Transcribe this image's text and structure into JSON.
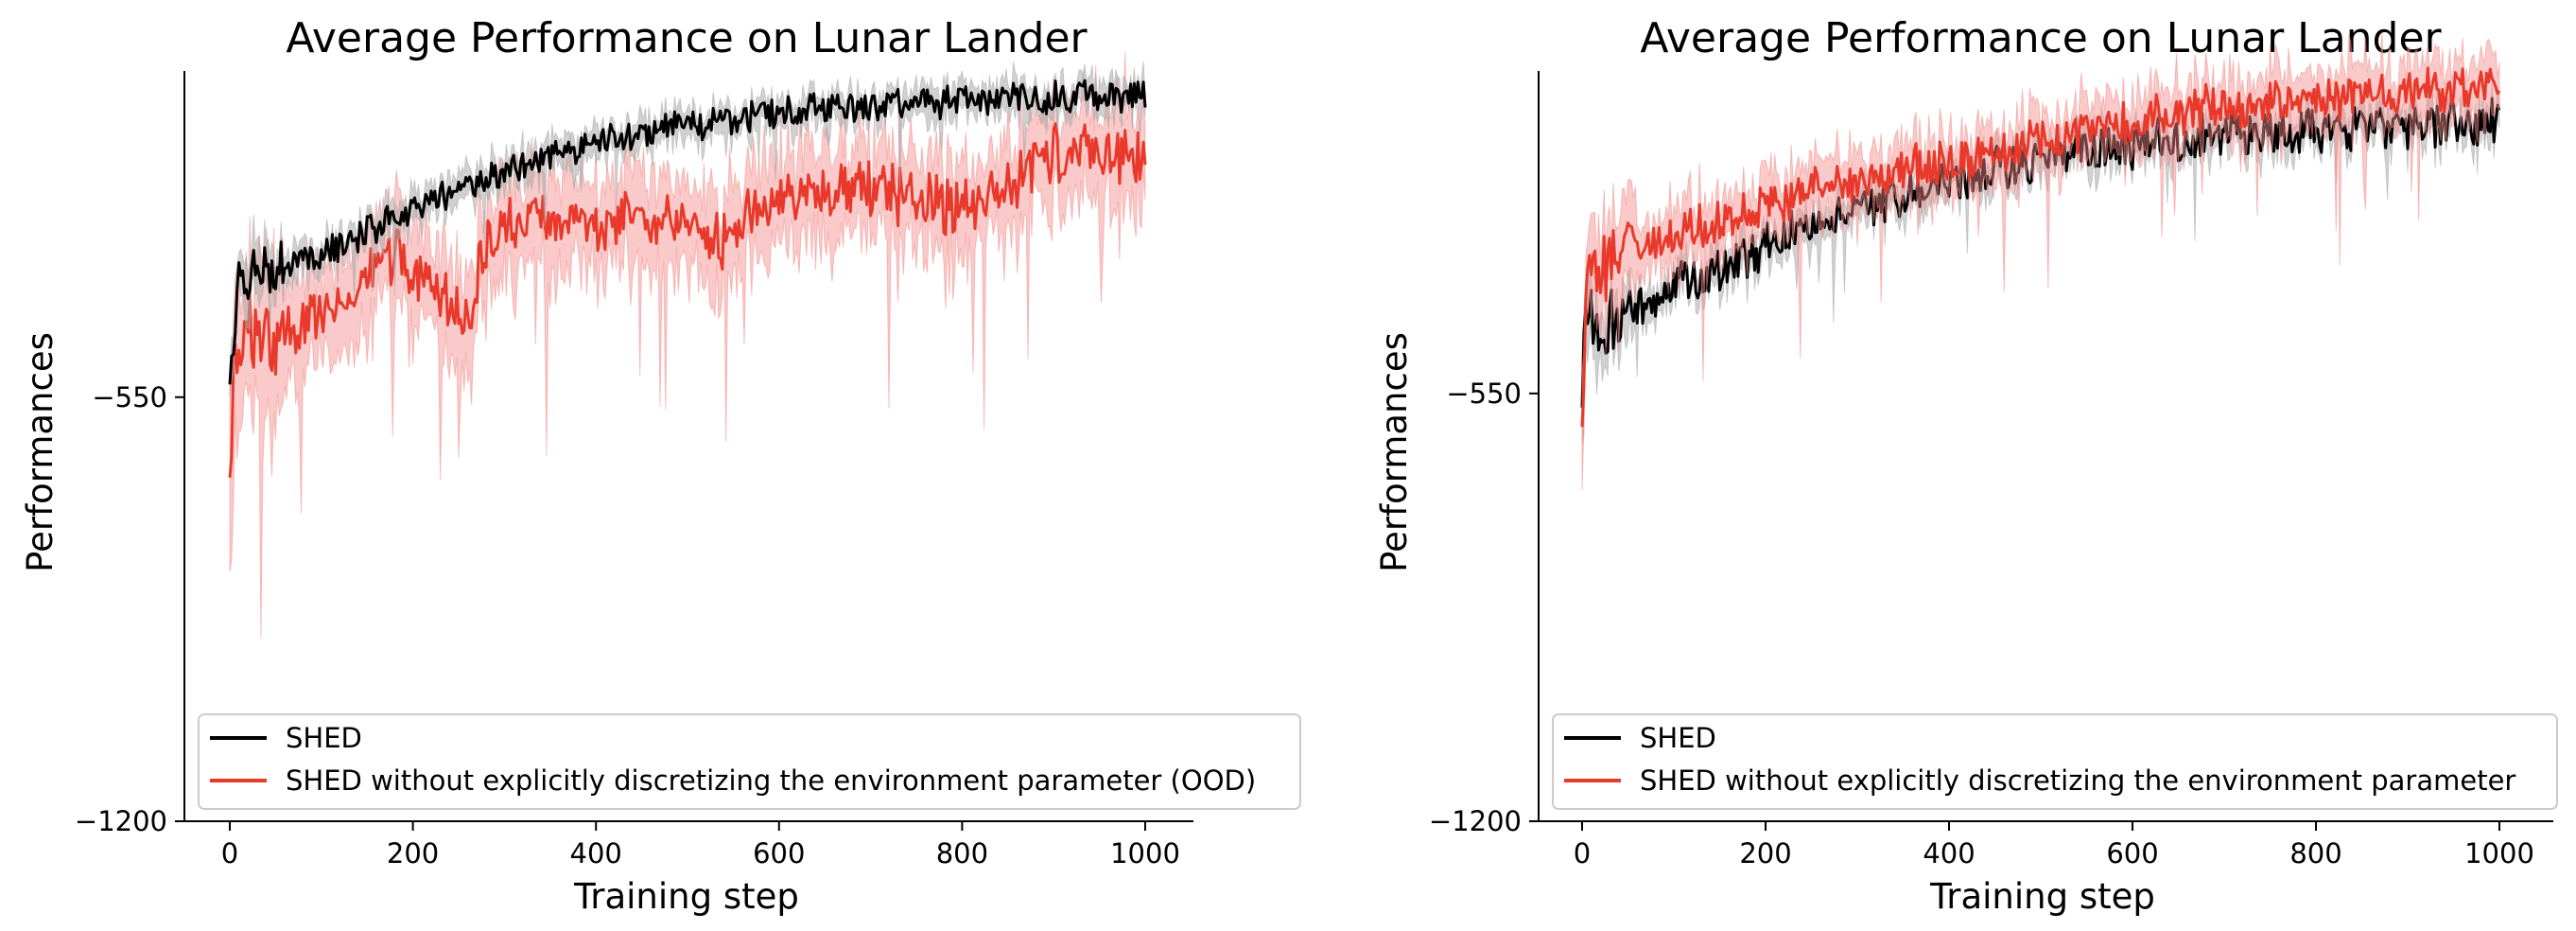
{
  "colors": {
    "shed": "#000000",
    "variant": "#e8392b",
    "variant_band": "#f28a88",
    "shed_band": "#a9a9a9"
  },
  "chart_data": [
    {
      "type": "line",
      "title": "Average Performance on Lunar Lander",
      "xlabel": "Training step",
      "ylabel": "Performances",
      "xlim": [
        -50,
        1050
      ],
      "ylim": [
        -1200,
        -50
      ],
      "xticks": [
        0,
        200,
        400,
        600,
        800,
        1000
      ],
      "yticks": [
        -550,
        -1200
      ],
      "grid": false,
      "legend_position": "bottom",
      "series": [
        {
          "name": "SHED",
          "color": "#000000",
          "band_color": "#a9a9a9",
          "noise": 22,
          "band": 28,
          "keypoints": [
            [
              0,
              -540
            ],
            [
              8,
              -380
            ],
            [
              30,
              -360
            ],
            [
              100,
              -330
            ],
            [
              200,
              -260
            ],
            [
              300,
              -205
            ],
            [
              400,
              -160
            ],
            [
              500,
              -135
            ],
            [
              600,
              -115
            ],
            [
              700,
              -100
            ],
            [
              800,
              -95
            ],
            [
              900,
              -90
            ],
            [
              1000,
              -85
            ]
          ]
        },
        {
          "name": "SHED without explicitly discretizing the environment parameter (OOD)",
          "color": "#e8392b",
          "band_color": "#f28a88",
          "noise": 38,
          "band": 90,
          "keypoints": [
            [
              0,
              -680
            ],
            [
              5,
              -470
            ],
            [
              20,
              -460
            ],
            [
              60,
              -450
            ],
            [
              120,
              -400
            ],
            [
              160,
              -360
            ],
            [
              180,
              -330
            ],
            [
              200,
              -360
            ],
            [
              240,
              -400
            ],
            [
              265,
              -420
            ],
            [
              275,
              -330
            ],
            [
              300,
              -290
            ],
            [
              350,
              -270
            ],
            [
              400,
              -290
            ],
            [
              450,
              -270
            ],
            [
              500,
              -290
            ],
            [
              540,
              -310
            ],
            [
              570,
              -270
            ],
            [
              600,
              -250
            ],
            [
              640,
              -240
            ],
            [
              700,
              -235
            ],
            [
              760,
              -245
            ],
            [
              800,
              -265
            ],
            [
              850,
              -230
            ],
            [
              880,
              -190
            ],
            [
              920,
              -170
            ],
            [
              960,
              -180
            ],
            [
              1000,
              -180
            ]
          ]
        }
      ]
    },
    {
      "type": "line",
      "title": "Average Performance on Lunar Lander",
      "xlabel": "Training step",
      "ylabel": "Performances",
      "xlim": [
        -50,
        1050
      ],
      "ylim": [
        -1200,
        -60
      ],
      "xticks": [
        0,
        200,
        400,
        600,
        800,
        1000
      ],
      "yticks": [
        -550,
        -1200
      ],
      "grid": false,
      "legend_position": "bottom",
      "series": [
        {
          "name": "SHED",
          "color": "#000000",
          "band_color": "#a9a9a9",
          "noise": 30,
          "band": 30,
          "keypoints": [
            [
              0,
              -520
            ],
            [
              5,
              -420
            ],
            [
              20,
              -450
            ],
            [
              40,
              -440
            ],
            [
              80,
              -400
            ],
            [
              150,
              -360
            ],
            [
              250,
              -290
            ],
            [
              350,
              -250
            ],
            [
              450,
              -210
            ],
            [
              550,
              -180
            ],
            [
              650,
              -165
            ],
            [
              750,
              -150
            ],
            [
              850,
              -145
            ],
            [
              950,
              -140
            ],
            [
              1000,
              -135
            ]
          ]
        },
        {
          "name": "SHED without explicitly discretizing the environment parameter",
          "color": "#e8392b",
          "band_color": "#f28a88",
          "noise": 30,
          "band": 55,
          "keypoints": [
            [
              0,
              -560
            ],
            [
              5,
              -380
            ],
            [
              20,
              -360
            ],
            [
              60,
              -330
            ],
            [
              150,
              -290
            ],
            [
              250,
              -240
            ],
            [
              350,
              -210
            ],
            [
              450,
              -180
            ],
            [
              550,
              -150
            ],
            [
              650,
              -120
            ],
            [
              750,
              -110
            ],
            [
              850,
              -100
            ],
            [
              950,
              -90
            ],
            [
              1000,
              -85
            ]
          ]
        }
      ]
    }
  ]
}
